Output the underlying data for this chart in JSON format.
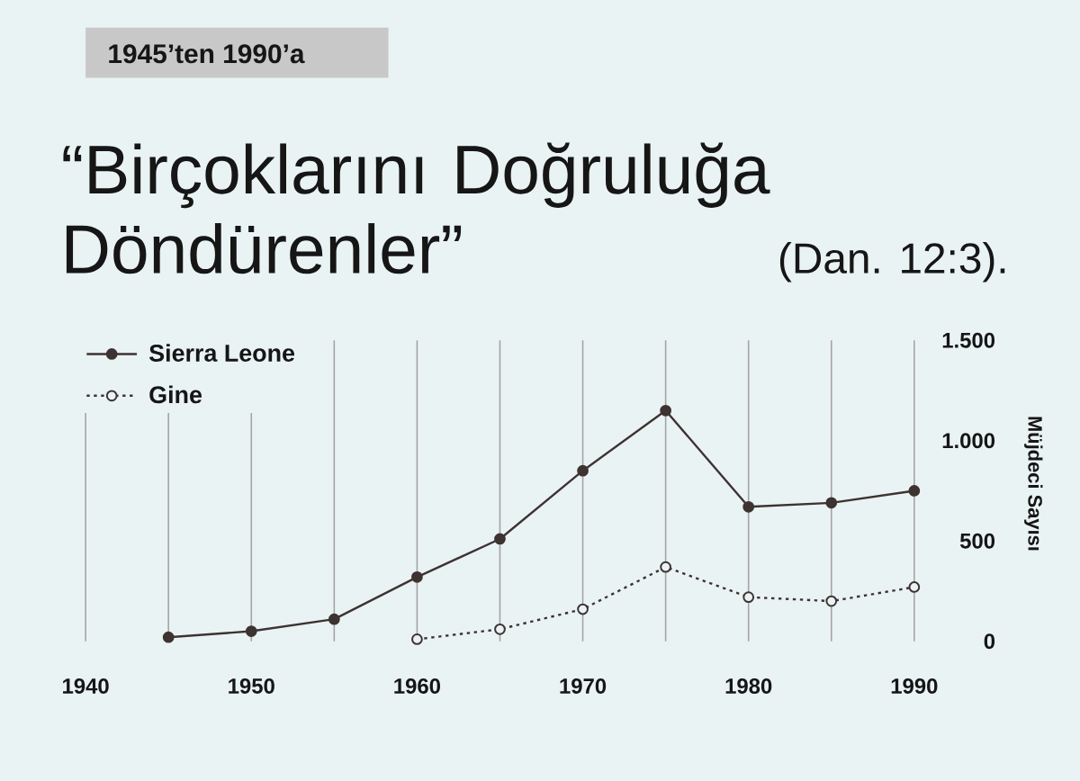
{
  "chart_data": {
    "type": "line",
    "title": "“Birçoklarını Doğruluğa Döndürenler”",
    "subtitle": "(Dan. 12:3).",
    "annotations": [
      "1945’ten 1990’a"
    ],
    "ylabel": "Müjdeci Sayısı",
    "x": [
      1945,
      1950,
      1955,
      1960,
      1965,
      1970,
      1975,
      1980,
      1985,
      1990
    ],
    "series": [
      {
        "name": "Sierra Leone",
        "color": "#3d3331",
        "line_style": "solid",
        "marker": "circle",
        "values": [
          20,
          50,
          110,
          320,
          510,
          850,
          1150,
          670,
          690,
          750
        ]
      },
      {
        "name": "Gine",
        "color": "#3d3331",
        "line_style": "dotted",
        "marker": "circle",
        "x": [
          1960,
          1965,
          1970,
          1975,
          1980,
          1985,
          1990
        ],
        "values": [
          10,
          60,
          160,
          370,
          220,
          200,
          270
        ]
      }
    ],
    "xlim": [
      1940,
      1990
    ],
    "ylim": [
      0,
      1500
    ],
    "xticks": [
      1940,
      {
        "value": 1945,
        "label": null
      },
      1950,
      {
        "value": 1955,
        "label": null
      },
      1960,
      {
        "value": 1965,
        "label": null
      },
      1970,
      {
        "value": 1975,
        "label": null
      },
      1980,
      {
        "value": 1985,
        "label": null
      },
      1990
    ],
    "yticks": [
      0,
      500,
      {
        "value": 1000,
        "label": "1.000"
      },
      {
        "value": 1500,
        "label": "1.500"
      }
    ],
    "grid": "x",
    "legend": "top left"
  }
}
